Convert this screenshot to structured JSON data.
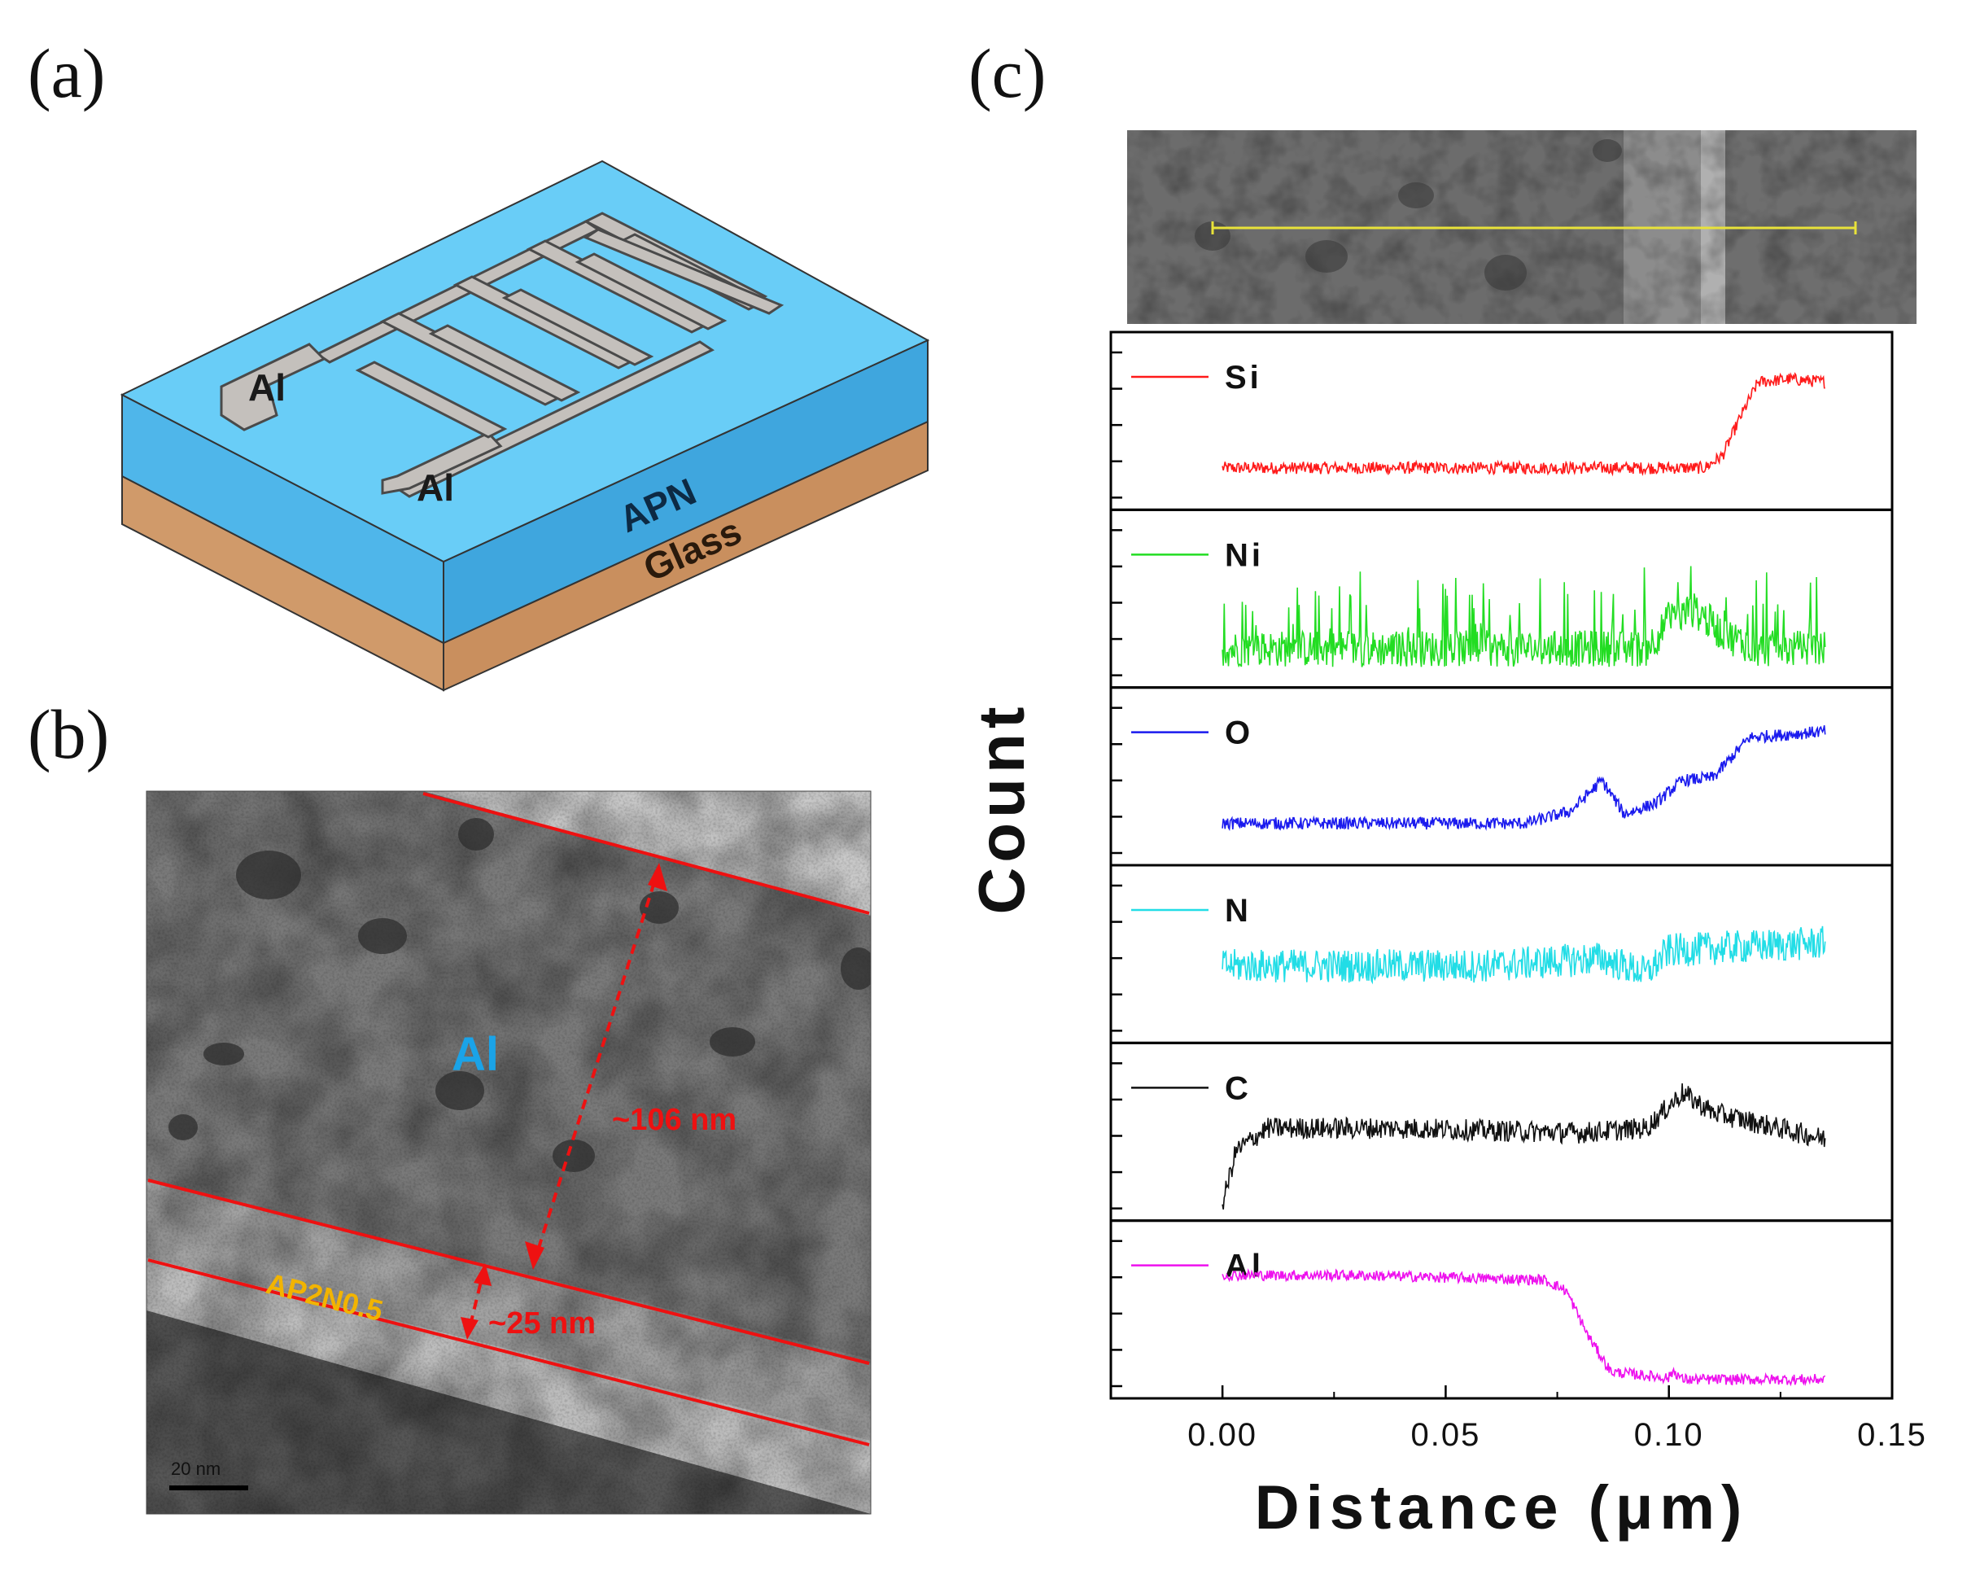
{
  "panels": {
    "a": {
      "label": "(a)"
    },
    "b": {
      "label": "(b)"
    },
    "c": {
      "label": "(c)"
    }
  },
  "device": {
    "electrode_top_label": "Al",
    "electrode_bottom_label": "Al",
    "layer_film_label": "APN",
    "layer_substrate_label": "Glass",
    "colors": {
      "film": "#66ccf5",
      "film_side": "#3da8e0",
      "substrate": "#d09a6a",
      "electrode": "#c4c0bc"
    }
  },
  "tem": {
    "region_label": "Al",
    "film_label": "AP2N0.5",
    "thickness_al": "~106 nm",
    "thickness_film": "~25 nm",
    "scale_bar": "20 nm",
    "colors": {
      "lines": "#ee1111",
      "al_label": "#1aa3e8",
      "film_label": "#f2b400"
    }
  },
  "chart_data": {
    "type": "line",
    "title": "",
    "xlabel": "Distance (μm)",
    "ylabel": "Count",
    "xlim": [
      -0.025,
      0.15
    ],
    "x_ticks": [
      "0.00",
      "0.05",
      "0.10",
      "0.15"
    ],
    "x_tick_values": [
      0.0,
      0.05,
      0.1,
      0.15
    ],
    "x_range_data": [
      0.0,
      0.135
    ],
    "series": [
      {
        "name": "Si",
        "color": "#ff1a1a",
        "profile": [
          [
            0,
            0.22
          ],
          [
            0.06,
            0.22
          ],
          [
            0.108,
            0.22
          ],
          [
            0.112,
            0.3
          ],
          [
            0.116,
            0.55
          ],
          [
            0.12,
            0.78
          ],
          [
            0.127,
            0.8
          ],
          [
            0.135,
            0.78
          ]
        ],
        "noise": 0.04
      },
      {
        "name": "Ni",
        "color": "#22dd22",
        "profile": [
          [
            0,
            0.2
          ],
          [
            0.06,
            0.2
          ],
          [
            0.095,
            0.2
          ],
          [
            0.1,
            0.38
          ],
          [
            0.106,
            0.45
          ],
          [
            0.112,
            0.3
          ],
          [
            0.12,
            0.2
          ],
          [
            0.135,
            0.2
          ]
        ],
        "noise": 0.12
      },
      {
        "name": "O",
        "color": "#1a1aee",
        "profile": [
          [
            0,
            0.22
          ],
          [
            0.068,
            0.22
          ],
          [
            0.078,
            0.3
          ],
          [
            0.085,
            0.5
          ],
          [
            0.09,
            0.28
          ],
          [
            0.097,
            0.35
          ],
          [
            0.103,
            0.5
          ],
          [
            0.11,
            0.52
          ],
          [
            0.118,
            0.78
          ],
          [
            0.135,
            0.82
          ]
        ],
        "noise": 0.04
      },
      {
        "name": "N",
        "color": "#22dde6",
        "profile": [
          [
            0,
            0.45
          ],
          [
            0.06,
            0.45
          ],
          [
            0.085,
            0.5
          ],
          [
            0.095,
            0.4
          ],
          [
            0.1,
            0.55
          ],
          [
            0.135,
            0.6
          ]
        ],
        "noise": 0.11
      },
      {
        "name": "C",
        "color": "#111111",
        "profile": [
          [
            0,
            0.05
          ],
          [
            0.003,
            0.4
          ],
          [
            0.01,
            0.55
          ],
          [
            0.04,
            0.55
          ],
          [
            0.08,
            0.52
          ],
          [
            0.095,
            0.55
          ],
          [
            0.103,
            0.78
          ],
          [
            0.11,
            0.65
          ],
          [
            0.135,
            0.48
          ]
        ],
        "noise": 0.07
      },
      {
        "name": "Al",
        "color": "#ee11ee",
        "profile": [
          [
            0,
            0.75
          ],
          [
            0.03,
            0.75
          ],
          [
            0.072,
            0.72
          ],
          [
            0.077,
            0.65
          ],
          [
            0.082,
            0.35
          ],
          [
            0.087,
            0.12
          ],
          [
            0.1,
            0.08
          ],
          [
            0.101,
            0.13
          ],
          [
            0.103,
            0.07
          ],
          [
            0.135,
            0.07
          ]
        ],
        "noise": 0.035
      }
    ],
    "colors": {
      "scan_line": "#e8e23a"
    }
  }
}
